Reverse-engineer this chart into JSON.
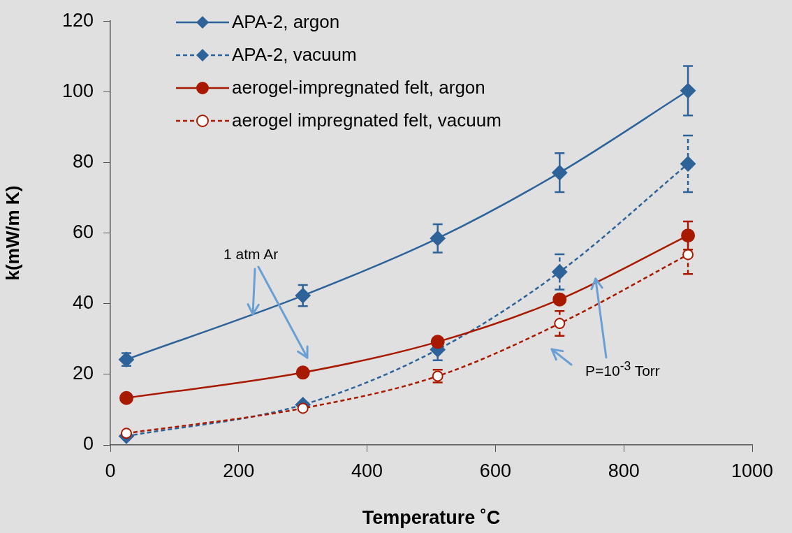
{
  "chart_data": {
    "type": "line",
    "xlabel": "Temperature ˚C",
    "ylabel": "k(mW/m K)",
    "x": [
      25,
      300,
      510,
      700,
      900
    ],
    "xlim": [
      0,
      1000
    ],
    "xticks": [
      0,
      200,
      400,
      600,
      800,
      1000
    ],
    "ylim": [
      0,
      120
    ],
    "yticks": [
      0,
      20,
      40,
      60,
      80,
      100,
      120
    ],
    "grid": false,
    "legend": "top left",
    "series": [
      {
        "name": "APA-2, argon",
        "color": "#2e6399",
        "marker": "diamond",
        "line_style": "solid",
        "values": [
          24.2,
          42.3,
          58.5,
          77.1,
          100.3
        ],
        "errors": [
          1.8,
          3,
          4,
          5.5,
          7
        ]
      },
      {
        "name": "APA-2, vacuum",
        "color": "#2e6399",
        "marker": "diamond",
        "line_style": "dashed",
        "values": [
          2.5,
          11.4,
          27,
          49,
          79.6
        ],
        "errors": [
          null,
          null,
          3,
          5,
          8
        ]
      },
      {
        "name": "aerogel-impregnated felt, argon",
        "color": "#a81a00",
        "marker": "circle",
        "line_style": "solid",
        "values": [
          13.3,
          20.5,
          29.2,
          41.2,
          59.3
        ],
        "errors": [
          null,
          null,
          null,
          null,
          4
        ]
      },
      {
        "name": "aerogel impregnated felt, vacuum",
        "color": "#a81a00",
        "marker": "circle",
        "line_style": "dashed",
        "values": [
          3.3,
          10.4,
          19.5,
          34.4,
          53.9
        ],
        "errors": [
          null,
          null,
          1.8,
          3.5,
          5.5
        ]
      }
    ],
    "annotations": [
      {
        "text": "1 atm Ar",
        "x": 222,
        "y": 37
      },
      {
        "text": "P=10$^{-3}$ Torr",
        "x": 756,
        "y": 47
      }
    ]
  }
}
